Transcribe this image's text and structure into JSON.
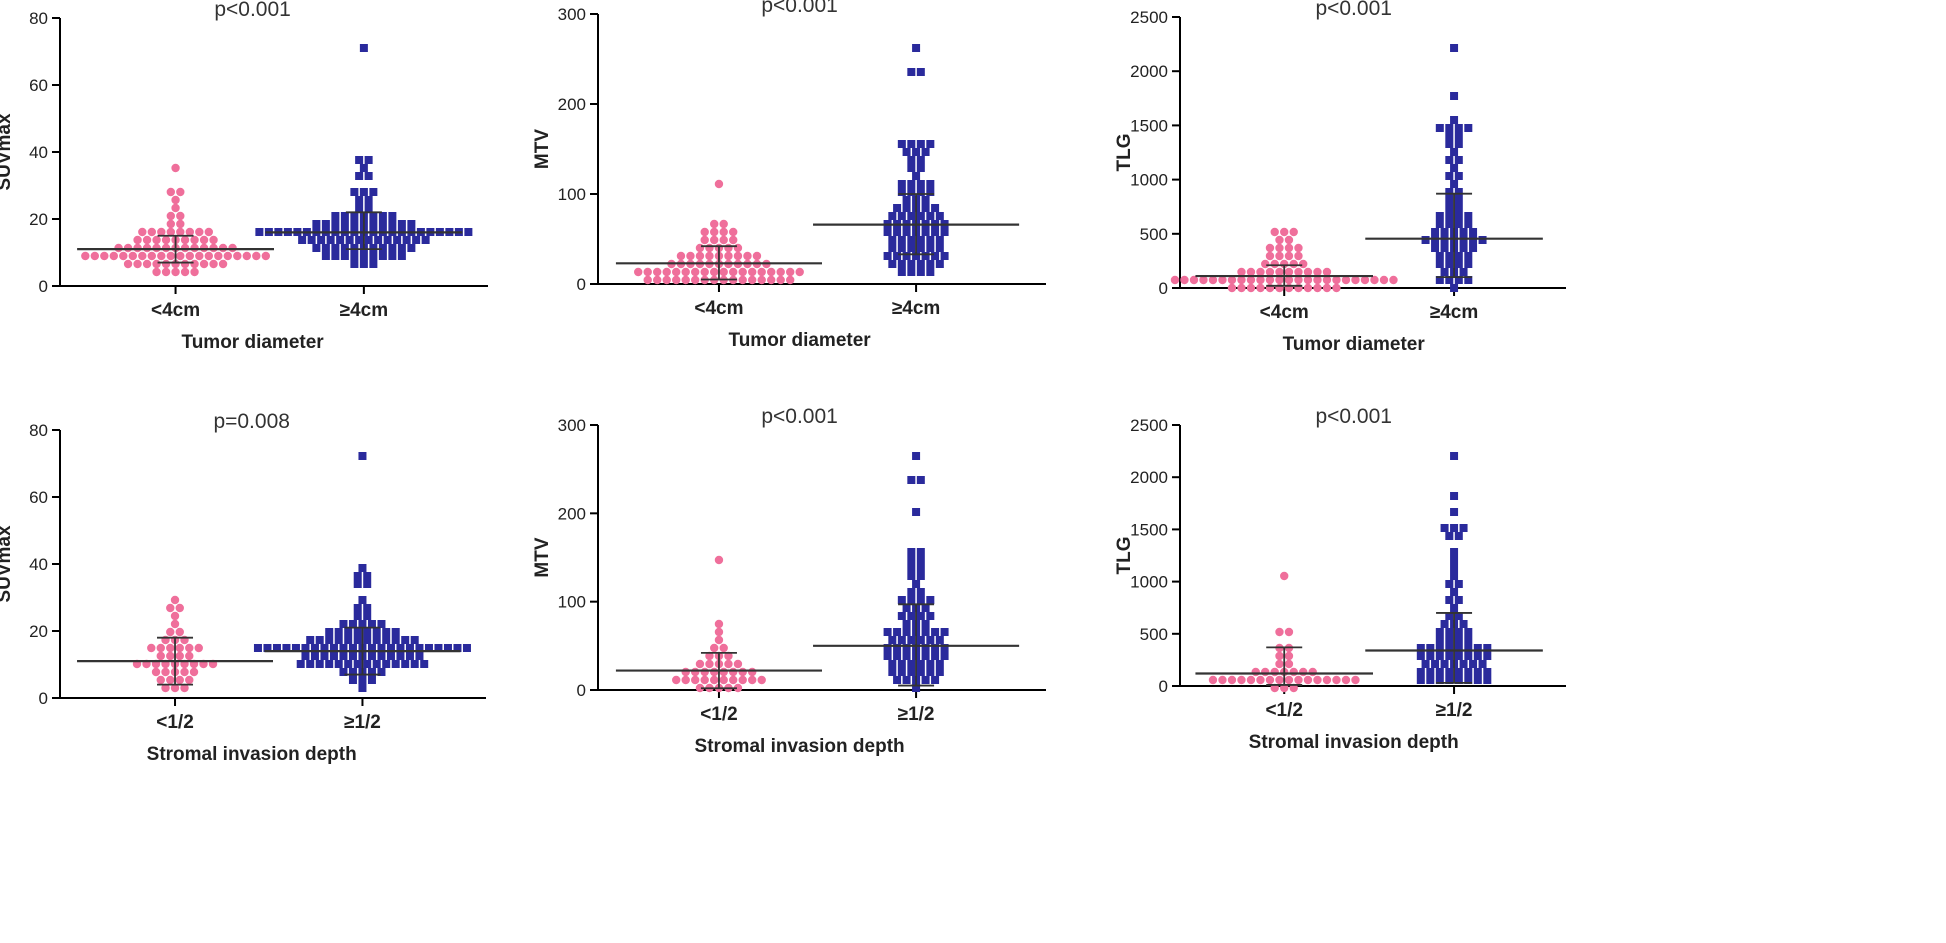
{
  "colors": {
    "group1": "#ef6f9b",
    "group2": "#2a2a9c",
    "axis": "#000000",
    "line": "#333333"
  },
  "chart_data": [
    {
      "type": "scatter",
      "id": "p1",
      "title": "p<0.001",
      "ylabel": "SUVmax",
      "xlabel": "Tumor diameter",
      "categories": [
        "<4cm",
        "≥4cm"
      ],
      "ylim": [
        0,
        80
      ],
      "yticks": [
        0,
        20,
        40,
        60,
        80
      ],
      "series": [
        {
          "name": "<4cm",
          "marker": "circle",
          "mean": 11,
          "err_low": 7,
          "err_high": 15,
          "values": [
            3,
            4,
            5,
            5,
            5,
            6,
            6,
            6,
            6,
            6,
            7,
            7,
            7,
            7,
            7,
            7,
            8,
            8,
            8,
            8,
            8,
            8,
            8,
            9,
            9,
            9,
            9,
            9,
            9,
            10,
            10,
            10,
            10,
            10,
            10,
            10,
            11,
            11,
            11,
            11,
            11,
            11,
            11,
            12,
            12,
            12,
            12,
            12,
            12,
            13,
            13,
            13,
            13,
            13,
            14,
            14,
            14,
            14,
            15,
            15,
            15,
            16,
            16,
            16,
            17,
            17,
            18,
            19,
            20,
            22,
            24,
            26,
            28,
            29,
            36
          ]
        },
        {
          "name": "≥4cm",
          "marker": "square",
          "mean": 16,
          "err_low": 11,
          "err_high": 22,
          "values": [
            6,
            7,
            7,
            8,
            8,
            9,
            9,
            9,
            10,
            10,
            10,
            10,
            11,
            11,
            11,
            11,
            11,
            12,
            12,
            12,
            12,
            12,
            12,
            13,
            13,
            13,
            13,
            13,
            13,
            13,
            14,
            14,
            14,
            14,
            14,
            14,
            14,
            15,
            15,
            15,
            15,
            15,
            15,
            15,
            15,
            16,
            16,
            16,
            16,
            16,
            16,
            16,
            16,
            17,
            17,
            17,
            17,
            17,
            17,
            17,
            18,
            18,
            18,
            18,
            18,
            18,
            19,
            19,
            19,
            19,
            19,
            20,
            20,
            20,
            21,
            21,
            22,
            22,
            23,
            24,
            25,
            26,
            27,
            27,
            29,
            32,
            34,
            35,
            37,
            38,
            72
          ]
        }
      ]
    },
    {
      "type": "scatter",
      "id": "p2",
      "title": "p<0.001",
      "ylabel": "MTV",
      "xlabel": "Tumor diameter",
      "categories": [
        "<4cm",
        "≥4cm"
      ],
      "ylim": [
        0,
        300
      ],
      "yticks": [
        0,
        100,
        200,
        300
      ],
      "series": [
        {
          "name": "<4cm",
          "marker": "circle",
          "mean": 23,
          "err_low": 5,
          "err_high": 42,
          "values": [
            1,
            2,
            3,
            3,
            4,
            4,
            5,
            5,
            5,
            6,
            6,
            7,
            7,
            8,
            8,
            8,
            9,
            9,
            10,
            10,
            10,
            11,
            11,
            12,
            12,
            13,
            13,
            14,
            14,
            15,
            15,
            16,
            16,
            17,
            18,
            18,
            19,
            20,
            20,
            21,
            22,
            23,
            24,
            25,
            26,
            27,
            28,
            29,
            30,
            31,
            32,
            33,
            34,
            35,
            37,
            38,
            40,
            42,
            44,
            46,
            48,
            50,
            52,
            55,
            58,
            60,
            62,
            64,
            65,
            108
          ]
        },
        {
          "name": "≥4cm",
          "marker": "square",
          "mean": 66,
          "err_low": 33,
          "err_high": 100,
          "values": [
            10,
            12,
            14,
            16,
            18,
            20,
            22,
            24,
            25,
            26,
            28,
            30,
            30,
            32,
            33,
            34,
            35,
            36,
            38,
            40,
            40,
            42,
            44,
            45,
            46,
            48,
            50,
            50,
            52,
            54,
            55,
            56,
            58,
            60,
            60,
            62,
            63,
            64,
            65,
            66,
            68,
            70,
            70,
            72,
            74,
            75,
            76,
            78,
            80,
            82,
            84,
            85,
            86,
            88,
            90,
            92,
            95,
            98,
            100,
            102,
            105,
            108,
            110,
            112,
            115,
            120,
            125,
            130,
            135,
            140,
            145,
            148,
            150,
            152,
            155,
            158,
            160,
            236,
            238,
            264
          ]
        }
      ]
    },
    {
      "type": "scatter",
      "id": "p3",
      "title": "p<0.001",
      "ylabel": "TLG",
      "xlabel": "Tumor diameter",
      "categories": [
        "<4cm",
        "≥4cm"
      ],
      "ylim": [
        0,
        2500
      ],
      "yticks": [
        0,
        500,
        1000,
        1500,
        2000,
        2500
      ],
      "series": [
        {
          "name": "<4cm",
          "marker": "circle",
          "mean": 110,
          "err_low": 20,
          "err_high": 210,
          "values": [
            5,
            10,
            12,
            15,
            18,
            20,
            22,
            25,
            28,
            30,
            32,
            35,
            38,
            40,
            42,
            45,
            48,
            50,
            52,
            55,
            58,
            60,
            62,
            65,
            68,
            70,
            72,
            75,
            78,
            80,
            85,
            90,
            95,
            100,
            105,
            110,
            115,
            120,
            125,
            130,
            135,
            140,
            150,
            160,
            170,
            180,
            190,
            200,
            210,
            220,
            240,
            260,
            280,
            300,
            320,
            340,
            360,
            380,
            400,
            420,
            450,
            480,
            520,
            540
          ]
        },
        {
          "name": "≥4cm",
          "marker": "square",
          "mean": 455,
          "err_low": 100,
          "err_high": 870,
          "values": [
            30,
            50,
            70,
            90,
            110,
            130,
            150,
            170,
            190,
            210,
            230,
            250,
            270,
            290,
            300,
            320,
            340,
            360,
            380,
            390,
            400,
            410,
            420,
            430,
            440,
            450,
            460,
            470,
            480,
            490,
            500,
            520,
            540,
            560,
            580,
            600,
            620,
            640,
            660,
            680,
            700,
            720,
            760,
            800,
            840,
            880,
            920,
            960,
            1000,
            1050,
            1100,
            1150,
            1200,
            1250,
            1300,
            1350,
            1400,
            1420,
            1440,
            1460,
            1480,
            1500,
            1520,
            1800,
            2180
          ]
        }
      ]
    },
    {
      "type": "scatter",
      "id": "p4",
      "title": "p=0.008",
      "ylabel": "SUVmax",
      "xlabel": "Stromal invasion depth",
      "categories": [
        "<1/2",
        "≥1/2"
      ],
      "ylim": [
        0,
        80
      ],
      "yticks": [
        0,
        20,
        40,
        60,
        80
      ],
      "series": [
        {
          "name": "<1/2",
          "marker": "circle",
          "mean": 11,
          "err_low": 4,
          "err_high": 18,
          "values": [
            3,
            4,
            4,
            5,
            5,
            6,
            6,
            7,
            7,
            8,
            8,
            8,
            9,
            9,
            9,
            10,
            10,
            10,
            11,
            11,
            11,
            12,
            12,
            13,
            13,
            14,
            14,
            15,
            15,
            16,
            16,
            17,
            18,
            18,
            19,
            20,
            22,
            25,
            27,
            28,
            30
          ]
        },
        {
          "name": "≥1/2",
          "marker": "square",
          "mean": 14,
          "err_low": 7,
          "err_high": 21,
          "values": [
            4,
            5,
            6,
            6,
            7,
            7,
            8,
            8,
            8,
            9,
            9,
            9,
            9,
            10,
            10,
            10,
            10,
            10,
            11,
            11,
            11,
            11,
            11,
            12,
            12,
            12,
            12,
            12,
            12,
            13,
            13,
            13,
            13,
            13,
            13,
            13,
            14,
            14,
            14,
            14,
            14,
            14,
            14,
            14,
            15,
            15,
            15,
            15,
            15,
            15,
            15,
            15,
            16,
            16,
            16,
            16,
            16,
            16,
            16,
            17,
            17,
            17,
            17,
            17,
            17,
            18,
            18,
            18,
            18,
            18,
            18,
            19,
            19,
            19,
            19,
            19,
            20,
            20,
            20,
            21,
            21,
            22,
            22,
            23,
            24,
            25,
            27,
            28,
            30,
            33,
            35,
            36,
            37,
            38,
            72
          ]
        }
      ]
    },
    {
      "type": "scatter",
      "id": "p5",
      "title": "p<0.001",
      "ylabel": "MTV",
      "xlabel": "Stromal invasion depth",
      "categories": [
        "<1/2",
        "≥1/2"
      ],
      "ylim": [
        0,
        300
      ],
      "yticks": [
        0,
        100,
        200,
        300
      ],
      "series": [
        {
          "name": "<1/2",
          "marker": "circle",
          "mean": 22,
          "err_low": 2,
          "err_high": 42,
          "values": [
            2,
            3,
            4,
            5,
            6,
            7,
            8,
            9,
            10,
            10,
            11,
            12,
            13,
            14,
            15,
            16,
            17,
            18,
            19,
            20,
            22,
            23,
            24,
            25,
            26,
            28,
            30,
            32,
            35,
            38,
            40,
            45,
            50,
            55,
            70,
            75,
            150
          ]
        },
        {
          "name": "≥1/2",
          "marker": "square",
          "mean": 50,
          "err_low": 5,
          "err_high": 97,
          "values": [
            5,
            8,
            10,
            12,
            14,
            15,
            16,
            18,
            20,
            20,
            22,
            24,
            25,
            26,
            28,
            30,
            30,
            32,
            34,
            35,
            36,
            38,
            40,
            40,
            42,
            44,
            45,
            46,
            48,
            50,
            50,
            52,
            54,
            55,
            56,
            58,
            60,
            60,
            62,
            64,
            65,
            66,
            68,
            70,
            70,
            72,
            75,
            78,
            80,
            82,
            85,
            88,
            90,
            92,
            95,
            98,
            100,
            102,
            105,
            110,
            115,
            120,
            125,
            130,
            135,
            140,
            145,
            150,
            155,
            160,
            200,
            235,
            238,
            265
          ]
        }
      ]
    },
    {
      "type": "scatter",
      "id": "p6",
      "title": "p<0.001",
      "ylabel": "TLG",
      "xlabel": "Stromal invasion depth",
      "categories": [
        "<1/2",
        "≥1/2"
      ],
      "ylim": [
        0,
        2500
      ],
      "yticks": [
        0,
        500,
        1000,
        1500,
        2000,
        2500
      ],
      "series": [
        {
          "name": "<1/2",
          "marker": "circle",
          "mean": 120,
          "err_low": 10,
          "err_high": 370,
          "values": [
            5,
            10,
            15,
            20,
            25,
            30,
            35,
            40,
            45,
            50,
            55,
            60,
            65,
            70,
            75,
            80,
            85,
            90,
            95,
            100,
            105,
            110,
            120,
            130,
            140,
            150,
            180,
            220,
            260,
            300,
            350,
            380,
            500,
            540,
            1070
          ]
        },
        {
          "name": "≥1/2",
          "marker": "square",
          "mean": 340,
          "err_low": 30,
          "err_high": 700,
          "values": [
            20,
            30,
            40,
            50,
            60,
            70,
            80,
            90,
            100,
            110,
            120,
            130,
            140,
            150,
            160,
            170,
            180,
            190,
            200,
            210,
            220,
            230,
            240,
            250,
            260,
            270,
            280,
            290,
            300,
            310,
            320,
            330,
            340,
            350,
            360,
            370,
            380,
            390,
            400,
            410,
            420,
            440,
            460,
            480,
            500,
            520,
            540,
            560,
            580,
            600,
            650,
            700,
            750,
            800,
            850,
            900,
            950,
            1000,
            1050,
            1100,
            1200,
            1300,
            1400,
            1450,
            1480,
            1500,
            1550,
            1700,
            1800,
            2180
          ]
        }
      ]
    }
  ]
}
